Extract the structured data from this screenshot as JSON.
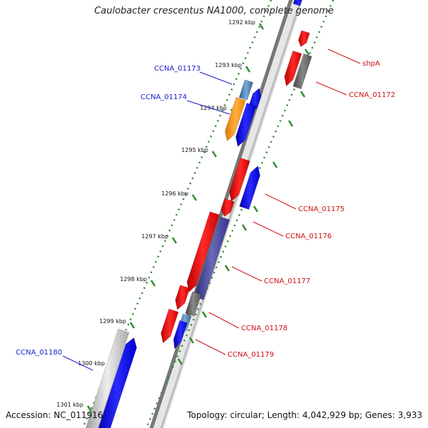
{
  "title": "Caulobacter crescentus NA1000, complete genome",
  "footer": {
    "accession": "Accession: NC_011916",
    "topology": "Topology: circular; Length: 4,042,929 bp; Genes: 3,933"
  },
  "colors": {
    "forward_label": "#1a1acc",
    "reverse_label": "#cc1111",
    "backbone": "#777777",
    "tick": "#2e8b2e"
  },
  "ticks": [
    "1292 kbp",
    "1293 kbp",
    "1294 kbp",
    "1295 kbp",
    "1296 kbp",
    "1297 kbp",
    "1298 kbp",
    "1299 kbp",
    "1300 kbp",
    "1301 kbp"
  ],
  "gene_labels": {
    "ccna_01173": "CCNA_01173",
    "ccna_01174": "CCNA_01174",
    "ccna_01180": "CCNA_01180",
    "shpa": "shpA",
    "ccna_01172": "CCNA_01172",
    "ccna_01175": "CCNA_01175",
    "ccna_01176": "CCNA_01176",
    "ccna_01177": "CCNA_01177",
    "ccna_01178": "CCNA_01178",
    "ccna_01179": "CCNA_01179"
  }
}
